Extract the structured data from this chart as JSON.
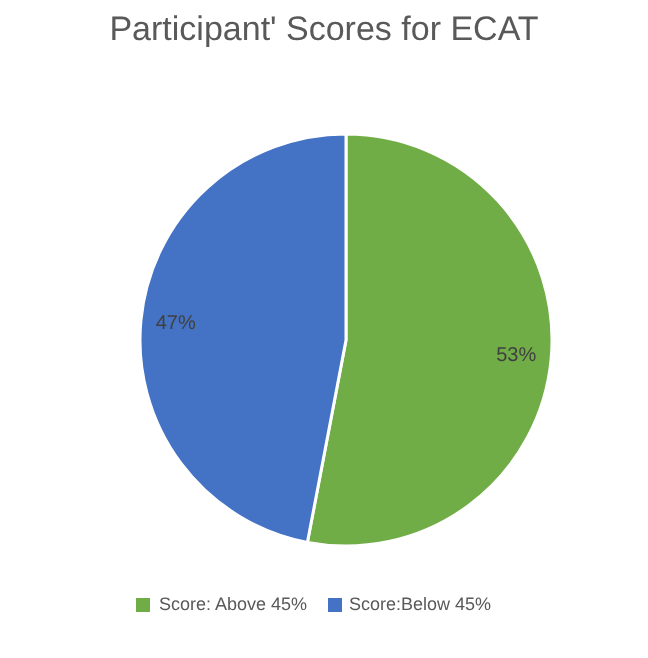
{
  "chart_data": {
    "type": "pie",
    "title": "Participant' Scores for ECAT",
    "categories": [
      "Score: Above 45%",
      "Score:Below 45%"
    ],
    "values": [
      53,
      47
    ],
    "colors": [
      "#70ad47",
      "#4472c4"
    ],
    "value_labels": [
      "53%",
      "47%"
    ],
    "legend": "bottom"
  }
}
